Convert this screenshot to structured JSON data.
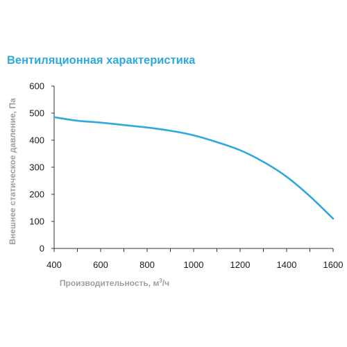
{
  "chart_data": {
    "type": "line",
    "title": "Вентиляционная характеристика",
    "xlabel": "Производительность, м",
    "xlabel_sup": "3",
    "xlabel_suffix": "/ч",
    "ylabel": "Внешнее статическое давление, Па",
    "xlim": [
      400,
      1600
    ],
    "ylim": [
      0,
      600
    ],
    "x_ticks": [
      400,
      600,
      800,
      1000,
      1200,
      1400,
      1600
    ],
    "y_ticks": [
      0,
      100,
      200,
      300,
      400,
      500,
      600
    ],
    "grid": false,
    "colors": {
      "line": "#2fa8de",
      "title": "#2fa8de",
      "axis": "#333333",
      "axis_label": "#9aa0a6"
    },
    "series": [
      {
        "x": [
          400,
          500,
          600,
          700,
          800,
          900,
          1000,
          1100,
          1200,
          1300,
          1400,
          1500,
          1600
        ],
        "y": [
          485,
          472,
          465,
          456,
          447,
          435,
          418,
          393,
          363,
          320,
          265,
          193,
          110
        ]
      }
    ]
  }
}
